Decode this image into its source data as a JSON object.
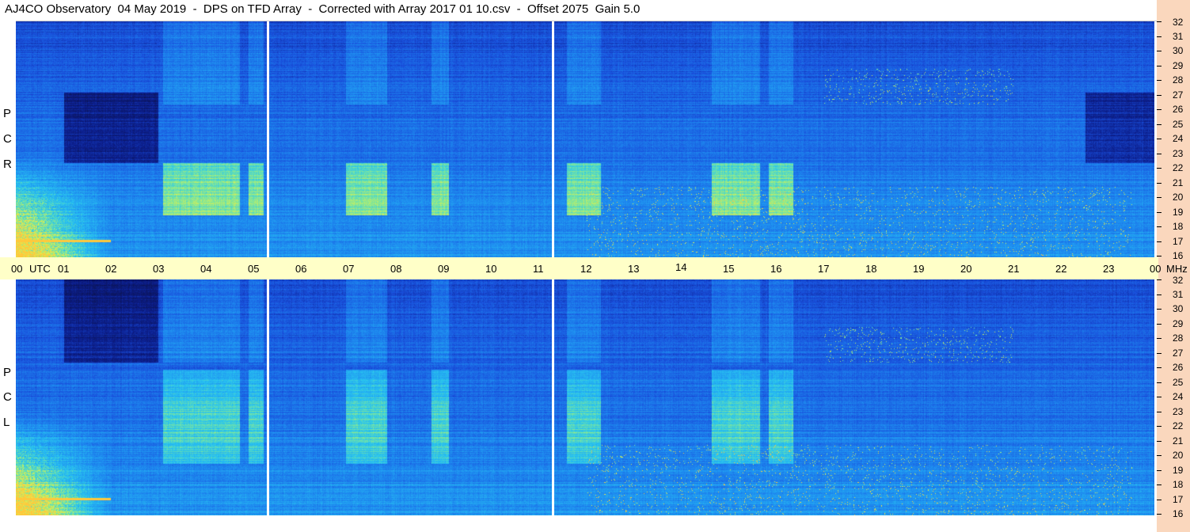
{
  "title": "AJ4CO Observatory  04 May 2019  -  DPS on TFD Array  -  Corrected with Array 2017 01 10.csv  -  Offset 2075  Gain 5.0",
  "time_axis": {
    "labels": [
      "00",
      "UTC",
      "01",
      "02",
      "03",
      "04",
      "05",
      "06",
      "07",
      "08",
      "09",
      "10",
      "11",
      "12",
      "13",
      "14",
      "15",
      "16",
      "17",
      "18",
      "19",
      "20",
      "21",
      "22",
      "23",
      "00",
      "MHz"
    ]
  },
  "rcp": {
    "letters": [
      "R",
      "C",
      "P"
    ],
    "freq_labels": [
      "32",
      "31",
      "30",
      "29",
      "28",
      "27",
      "26",
      "25",
      "24",
      "23",
      "22",
      "21",
      "20",
      "19",
      "18",
      "17",
      "16"
    ]
  },
  "lcp": {
    "letters": [
      "L",
      "C",
      "P"
    ],
    "freq_labels": [
      "32",
      "31",
      "30",
      "29",
      "28",
      "27",
      "26",
      "25",
      "24",
      "23",
      "22",
      "21",
      "20",
      "19",
      "18",
      "17",
      "16"
    ]
  },
  "colors": {
    "background_dark": "#0a1a6e",
    "background_mid": "#1e5ae6",
    "band_cyan": "#28c8f0",
    "band_yellow": "#dcf050",
    "axis_strip": "#ffffc8",
    "freq_strip": "#fad7bd"
  },
  "chart_data": [
    {
      "type": "heatmap",
      "title": "R C P",
      "xlabel": "UTC",
      "ylabel": "MHz",
      "xlim": [
        0,
        24
      ],
      "ylim": [
        16,
        32
      ],
      "x_ticks": [
        "00",
        "01",
        "02",
        "03",
        "04",
        "05",
        "06",
        "07",
        "08",
        "09",
        "10",
        "11",
        "12",
        "13",
        "14",
        "15",
        "16",
        "17",
        "18",
        "19",
        "20",
        "21",
        "22",
        "23",
        "00"
      ],
      "y_ticks": [
        32,
        31,
        30,
        29,
        28,
        27,
        26,
        25,
        24,
        23,
        22,
        21,
        20,
        19,
        18,
        17,
        16
      ],
      "data_gaps_utc": [
        5.3,
        11.3
      ]
    },
    {
      "type": "heatmap",
      "title": "L C P",
      "xlabel": "UTC",
      "ylabel": "MHz",
      "xlim": [
        0,
        24
      ],
      "ylim": [
        16,
        32
      ],
      "x_ticks": [
        "00",
        "01",
        "02",
        "03",
        "04",
        "05",
        "06",
        "07",
        "08",
        "09",
        "10",
        "11",
        "12",
        "13",
        "14",
        "15",
        "16",
        "17",
        "18",
        "19",
        "20",
        "21",
        "22",
        "23",
        "00"
      ],
      "y_ticks": [
        32,
        31,
        30,
        29,
        28,
        27,
        26,
        25,
        24,
        23,
        22,
        21,
        20,
        19,
        18,
        17,
        16
      ],
      "data_gaps_utc": [
        5.3,
        11.3
      ]
    }
  ]
}
